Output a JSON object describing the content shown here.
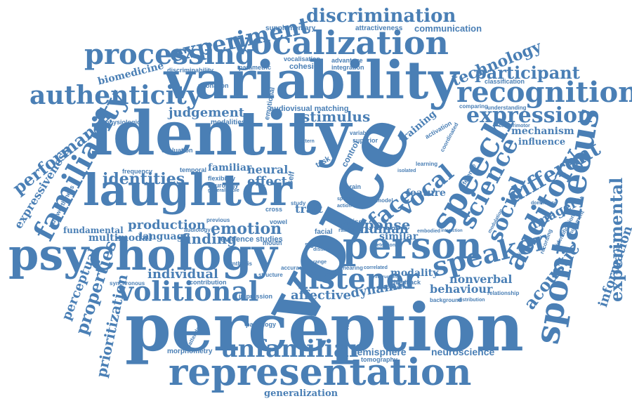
{
  "color": "#4a7fb5",
  "words": [
    "perception",
    "voice",
    "variability",
    "identity",
    "laughter",
    "psychology",
    "representation",
    "spontaneous",
    "person",
    "speech",
    "vocalization",
    "recognition",
    "processing",
    "authenticity",
    "familiarity",
    "auditory",
    "speaker",
    "listener",
    "volitional",
    "unfamiliar",
    "experiment",
    "discrimination",
    "expression",
    "face",
    "vocal",
    "science",
    "social",
    "different",
    "participant",
    "technology",
    "experimental",
    "identities",
    "emotion",
    "performance",
    "judgement",
    "stimulus",
    "response",
    "human",
    "production",
    "finding",
    "individual",
    "properties",
    "prioritization",
    "perceptual",
    "expressiveness",
    "affective",
    "dynamic",
    "behaviour",
    "nonverbal",
    "acoustic",
    "information",
    "hemisphere",
    "neuroscience",
    "generalization",
    "biomedicine",
    "imagery",
    "mechanism",
    "influence",
    "communication",
    "feature",
    "trait",
    "effect",
    "neural",
    "familiar",
    "language",
    "multimodal",
    "fundamental",
    "evidence studies",
    "audiovisual matching",
    "modalities",
    "training",
    "supplementary",
    "attractiveness",
    "cohesion",
    "integration",
    "vocalisation",
    "advantage",
    "parametric",
    "discriminability",
    "phonation",
    "classification",
    "comparing",
    "understanding",
    "frequency",
    "temporal",
    "flexibility",
    "neurology",
    "physiological",
    "evaluation",
    "trustworthiness",
    "synchronous",
    "contribution",
    "impression",
    "pathology",
    "unattended",
    "behavioral",
    "morphometry",
    "tomography",
    "background",
    "distribution",
    "relationship",
    "modality",
    "feedback",
    "similar",
    "facial",
    "noise",
    "brain",
    "task",
    "cross",
    "vowel",
    "mouth",
    "signal",
    "control",
    "superior",
    "variable",
    "activation",
    "coordinated",
    "sensorimotor",
    "dominance",
    "modulation",
    "intelligibility",
    "recording",
    "identification",
    "movement",
    "accuracy",
    "synthesis",
    "structure",
    "embodied",
    "isolated",
    "learning",
    "difference",
    "audiology",
    "previous",
    "model",
    "emotional",
    "self",
    "study",
    "hearing",
    "correlated",
    "impoverished",
    "distinct",
    "rating",
    "specific",
    "action",
    "generalisable",
    "pattern",
    "interaction",
    "range",
    "detection",
    "instruction"
  ]
}
